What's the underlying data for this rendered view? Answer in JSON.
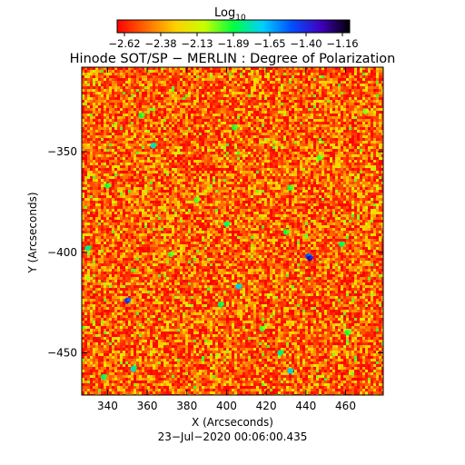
{
  "colorbar": {
    "label": "Log",
    "label_subscript": "10",
    "tick_labels": [
      "−2.62",
      "−2.38",
      "−2.13",
      "−1.89",
      "−1.65",
      "−1.40",
      "−1.16"
    ],
    "range": [
      -2.62,
      -1.16
    ],
    "colormap": [
      "#ff0000",
      "#ff6a00",
      "#ffd000",
      "#c8ff00",
      "#00ff40",
      "#00d0ff",
      "#0050ff",
      "#4000c0",
      "#000000"
    ]
  },
  "footer": {
    "timestamp": "23−Jul−2020 00:06:00.435"
  },
  "chart_data": {
    "type": "heatmap",
    "title": "Hinode SOT/SP − MERLIN : Degree of Polarization",
    "xlabel": "X (Arcseconds)",
    "ylabel": "Y (Arcseconds)",
    "xlim": [
      327,
      479
    ],
    "ylim": [
      -471,
      -308
    ],
    "x_ticks": [
      340,
      360,
      380,
      400,
      420,
      440,
      460
    ],
    "y_ticks": [
      -350,
      -400,
      -450
    ],
    "value_scale": "log10",
    "value_range": [
      -2.62,
      -1.16
    ],
    "background_level_range": [
      -2.62,
      -2.2
    ],
    "notable_features": [
      {
        "x": 400,
        "y": -386,
        "log10_value": -1.85
      },
      {
        "x": 430,
        "y": -390,
        "log10_value": -1.9
      },
      {
        "x": 441,
        "y": -402,
        "log10_value": -1.5
      },
      {
        "x": 442,
        "y": -403,
        "log10_value": -1.3
      },
      {
        "x": 330,
        "y": -398,
        "log10_value": -1.8
      },
      {
        "x": 350,
        "y": -424,
        "log10_value": -1.45
      },
      {
        "x": 406,
        "y": -417,
        "log10_value": -1.7
      },
      {
        "x": 363,
        "y": -347,
        "log10_value": -1.75
      },
      {
        "x": 357,
        "y": -332,
        "log10_value": -1.9
      },
      {
        "x": 404,
        "y": -338,
        "log10_value": -1.9
      },
      {
        "x": 427,
        "y": -450,
        "log10_value": -1.8
      },
      {
        "x": 432,
        "y": -459,
        "log10_value": -1.7
      },
      {
        "x": 353,
        "y": -458,
        "log10_value": -1.75
      },
      {
        "x": 338,
        "y": -462,
        "log10_value": -1.85
      },
      {
        "x": 397,
        "y": -426,
        "log10_value": -1.85
      },
      {
        "x": 432,
        "y": -368,
        "log10_value": -1.9
      },
      {
        "x": 447,
        "y": -353,
        "log10_value": -1.95
      },
      {
        "x": 458,
        "y": -396,
        "log10_value": -1.85
      },
      {
        "x": 385,
        "y": -374,
        "log10_value": -1.95
      },
      {
        "x": 372,
        "y": -401,
        "log10_value": -1.95
      },
      {
        "x": 418,
        "y": -438,
        "log10_value": -1.95
      },
      {
        "x": 470,
        "y": -330,
        "log10_value": -2.0
      },
      {
        "x": 461,
        "y": -440,
        "log10_value": -1.9
      },
      {
        "x": 340,
        "y": -367,
        "log10_value": -1.9
      }
    ]
  }
}
